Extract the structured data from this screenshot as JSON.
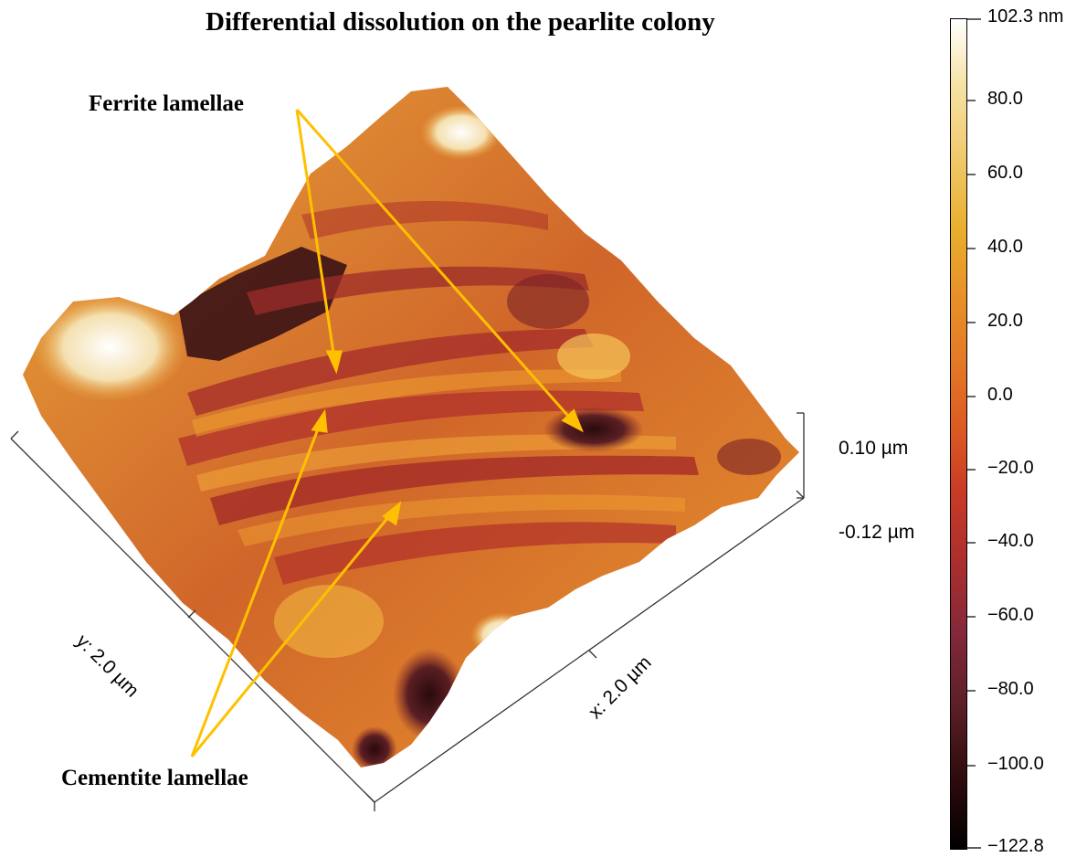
{
  "title": "Differential dissolution on the pearlite colony",
  "annotations": {
    "ferrite": "Ferrite lamellae",
    "cementite": "Cementite lamellae",
    "arrow_color": "#FFC000"
  },
  "axes": {
    "y_label": "y: 2.0 µm",
    "x_label": "x: 2.0 µm",
    "z_top": "0.10 µm",
    "z_bottom": "-0.12 µm"
  },
  "colorbar": {
    "unit": "nm",
    "ticks": [
      "102.3 nm",
      "80.0",
      "60.0",
      "40.0",
      "20.0",
      "0.0",
      "−20.0",
      "−40.0",
      "−60.0",
      "−80.0",
      "−100.0",
      "−122.8"
    ],
    "colors": [
      "#ffffff",
      "#f0c86a",
      "#e89228",
      "#dd5b22",
      "#ad2f2d",
      "#5a1f24",
      "#000000"
    ]
  }
}
